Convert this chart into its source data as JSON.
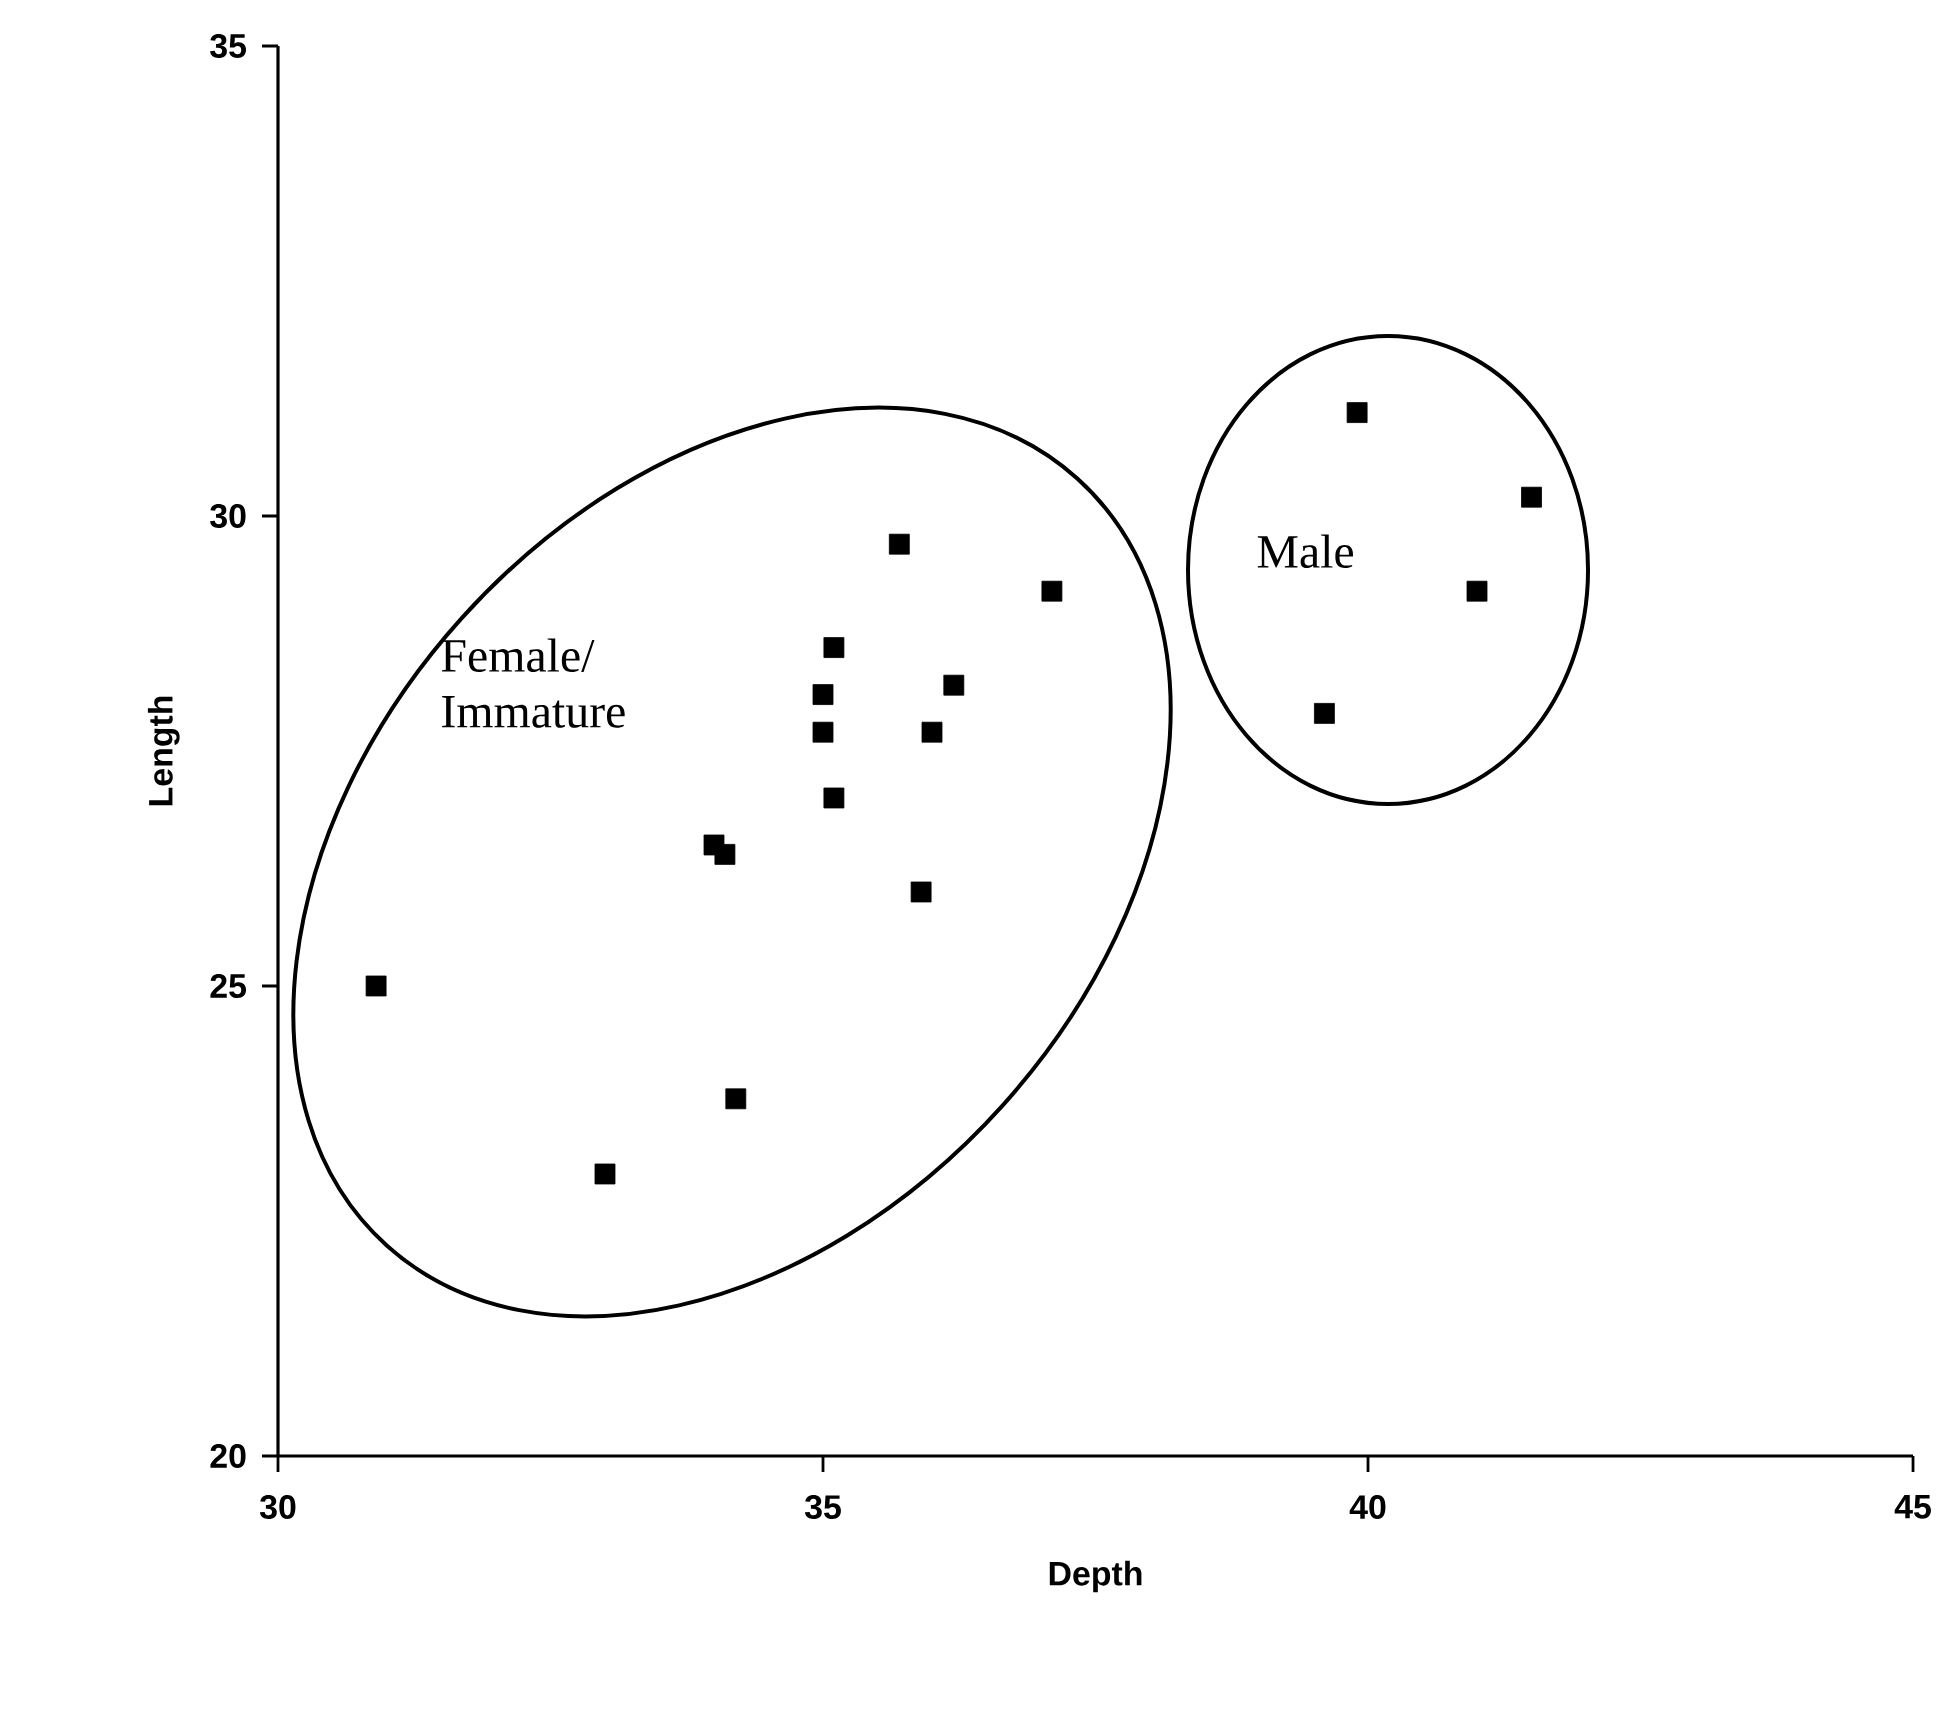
{
  "chart_data": {
    "type": "scatter",
    "xlabel": "Depth",
    "ylabel": "Length",
    "marker": "square",
    "x": [
      30.9,
      33.0,
      34.2,
      34.0,
      34.1,
      35.9,
      35.1,
      35.0,
      36.0,
      35.0,
      36.2,
      35.1,
      35.7,
      37.1,
      39.9,
      41.5,
      41.0,
      39.6
    ],
    "series": [
      {
        "color": "#000000",
        "values": [
          25.0,
          23.0,
          23.8,
          26.5,
          26.4,
          26.0,
          27.0,
          27.7,
          27.7,
          28.1,
          28.2,
          28.6,
          29.7,
          29.2,
          31.1,
          30.2,
          29.2,
          27.9
        ]
      }
    ],
    "xlim": [
      30,
      45
    ],
    "ylim": [
      20,
      35
    ],
    "xticks": [
      30,
      35,
      40,
      45
    ],
    "yticks": [
      20,
      25,
      30,
      35
    ],
    "annotations": [
      "Female/ Immature",
      "Male"
    ]
  }
}
